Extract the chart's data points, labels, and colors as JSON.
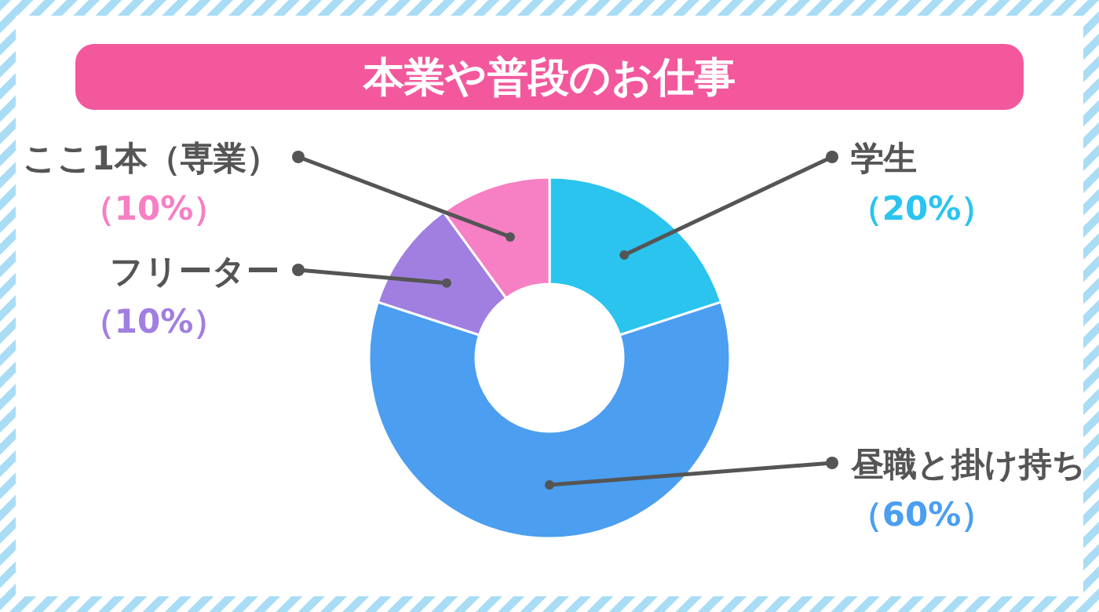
{
  "chart_data": {
    "type": "donut",
    "title": "本業や普段のお仕事",
    "categories": [
      "学生",
      "昼職と掛け持ち",
      "フリーター",
      "ここ1本（専業）"
    ],
    "values": [
      20,
      60,
      10,
      10
    ],
    "value_labels": [
      "（20%）",
      "（60%）",
      "（10%）",
      "（10%）"
    ],
    "colors": [
      "#2ac4ef",
      "#4b9ef0",
      "#a07fe0",
      "#f77fc4"
    ]
  }
}
